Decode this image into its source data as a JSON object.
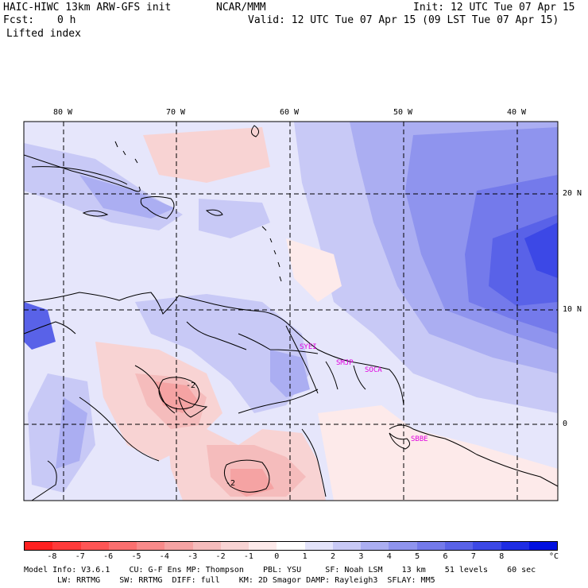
{
  "header": {
    "model": "HAIC-HIWC 13km ARW-GFS init",
    "org": "NCAR/MMM",
    "init": "Init: 12 UTC Tue 07 Apr 15",
    "fcst_label": "Fcst:",
    "fcst_value": "0 h",
    "valid": "Valid: 12 UTC Tue 07 Apr 15 (09 LST Tue 07 Apr 15)",
    "field": "Lifted index"
  },
  "axes": {
    "lon_labels": [
      "80 W",
      "70 W",
      "60 W",
      "50 W",
      "40 W"
    ],
    "lat_labels": [
      "20 N",
      "10 N",
      "0"
    ]
  },
  "stations": [
    "SYEI",
    "SMJP",
    "SOCA",
    "SBBE"
  ],
  "contour_labels": [
    "-2",
    "-2"
  ],
  "colorbar": {
    "ticks": [
      "-8",
      "-7",
      "-6",
      "-5",
      "-4",
      "-3",
      "-2",
      "-1",
      "0",
      "1",
      "2",
      "3",
      "4",
      "5",
      "6",
      "7",
      "8"
    ],
    "unit": "°C",
    "colors": [
      "#ff2020",
      "#ff3a3a",
      "#ff5555",
      "#fb6f6f",
      "#f88a8a",
      "#f5a3a3",
      "#f5bcbc",
      "#f8d3d3",
      "#fdeaea",
      "#ffffff",
      "#e4e4fb",
      "#c8c9f6",
      "#abaef2",
      "#8f94ee",
      "#747aeb",
      "#5962e8",
      "#3c48e6",
      "#1e2de4",
      "#0010e0"
    ]
  },
  "footer": {
    "line1": "Model Info: V3.6.1    CU: G-F Ens MP: Thompson    PBL: YSU     SF: Noah LSM    13 km    51 levels    60 sec",
    "line2": "LW: RRTMG    SW: RRTMG  DIFF: full    KM: 2D Smagor DAMP: Rayleigh3  SFLAY: MM5"
  }
}
